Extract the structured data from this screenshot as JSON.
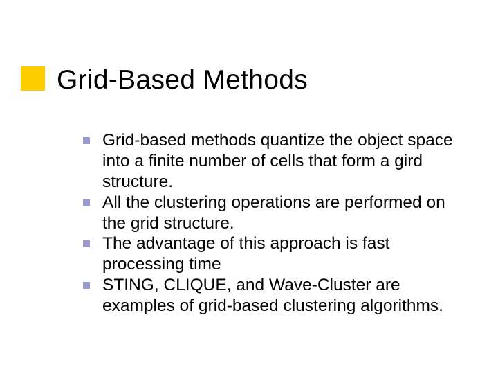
{
  "slide": {
    "title": "Grid-Based Methods",
    "title_color": "#000000",
    "title_fontsize": 39,
    "accent_color": "#ffcc00",
    "bullet_color": "#9999cc",
    "bullet_size": 10,
    "body_fontsize": 24.5,
    "body_color": "#000000",
    "background_color": "#ffffff",
    "items": [
      {
        "text": "Grid-based methods quantize the object space into a finite number of cells that form a gird structure."
      },
      {
        "text": "All the clustering operations are performed on the grid structure."
      },
      {
        "text": "The advantage of this approach is fast processing time"
      },
      {
        "text": "STING, CLIQUE, and Wave-Cluster are examples of grid-based clustering algorithms."
      }
    ]
  }
}
